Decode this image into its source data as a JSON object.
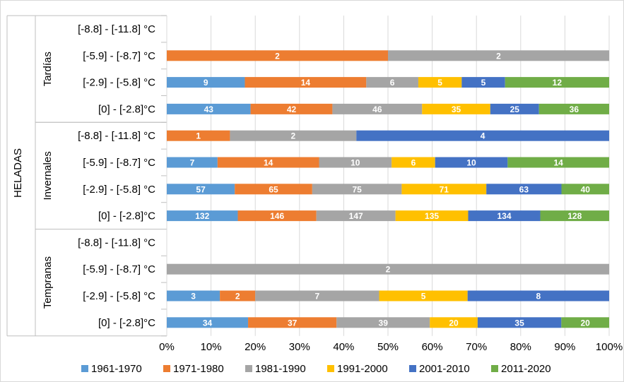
{
  "chart_data": {
    "type": "bar",
    "orientation": "horizontal",
    "stacked": "percent",
    "title": "",
    "xlabel": "",
    "ylabel": "HELADAS",
    "xlim": [
      0,
      100
    ],
    "x_ticks": [
      "0%",
      "10%",
      "20%",
      "30%",
      "40%",
      "50%",
      "60%",
      "70%",
      "80%",
      "90%",
      "100%"
    ],
    "grid": true,
    "legend_position": "bottom",
    "groups": [
      {
        "name": "Tardías",
        "rows": [
          {
            "label": "[-8.8] - [-11.8] °C",
            "values": [
              0,
              0,
              0,
              0,
              0,
              0
            ]
          },
          {
            "label": "[-5.9] - [-8.7] °C",
            "values": [
              0,
              2,
              2,
              0,
              0,
              0
            ]
          },
          {
            "label": "[-2.9] - [-5.8] °C",
            "values": [
              9,
              14,
              6,
              5,
              5,
              12
            ]
          },
          {
            "label": "[0] - [-2.8]°C",
            "values": [
              43,
              42,
              46,
              35,
              25,
              36
            ]
          }
        ]
      },
      {
        "name": "Invernales",
        "rows": [
          {
            "label": "[-8.8] - [-11.8] °C",
            "values": [
              0,
              1,
              2,
              0,
              4,
              0
            ]
          },
          {
            "label": "[-5.9] - [-8.7] °C",
            "values": [
              7,
              14,
              10,
              6,
              10,
              14
            ]
          },
          {
            "label": "[-2.9] - [-5.8] °C",
            "values": [
              57,
              65,
              75,
              71,
              63,
              40
            ]
          },
          {
            "label": "[0] - [-2.8]°C",
            "values": [
              132,
              146,
              147,
              135,
              134,
              128
            ]
          }
        ]
      },
      {
        "name": "Tempranas",
        "rows": [
          {
            "label": "[-8.8] - [-11.8] °C",
            "values": [
              0,
              0,
              0,
              0,
              0,
              0
            ]
          },
          {
            "label": "[-5.9] - [-8.7] °C",
            "values": [
              0,
              0,
              2,
              0,
              0,
              0
            ]
          },
          {
            "label": "[-2.9] - [-5.8] °C",
            "values": [
              3,
              2,
              7,
              5,
              8,
              0
            ]
          },
          {
            "label": "[0] - [-2.8]°C",
            "values": [
              34,
              37,
              39,
              20,
              35,
              20
            ]
          }
        ]
      }
    ],
    "series": [
      {
        "name": "1961-1970",
        "color": "#5B9BD5"
      },
      {
        "name": "1971-1980",
        "color": "#ED7D31"
      },
      {
        "name": "1981-1990",
        "color": "#A5A5A5"
      },
      {
        "name": "1991-2000",
        "color": "#FFC000"
      },
      {
        "name": "2001-2010",
        "color": "#4472C4"
      },
      {
        "name": "2011-2020",
        "color": "#70AD47"
      }
    ]
  }
}
